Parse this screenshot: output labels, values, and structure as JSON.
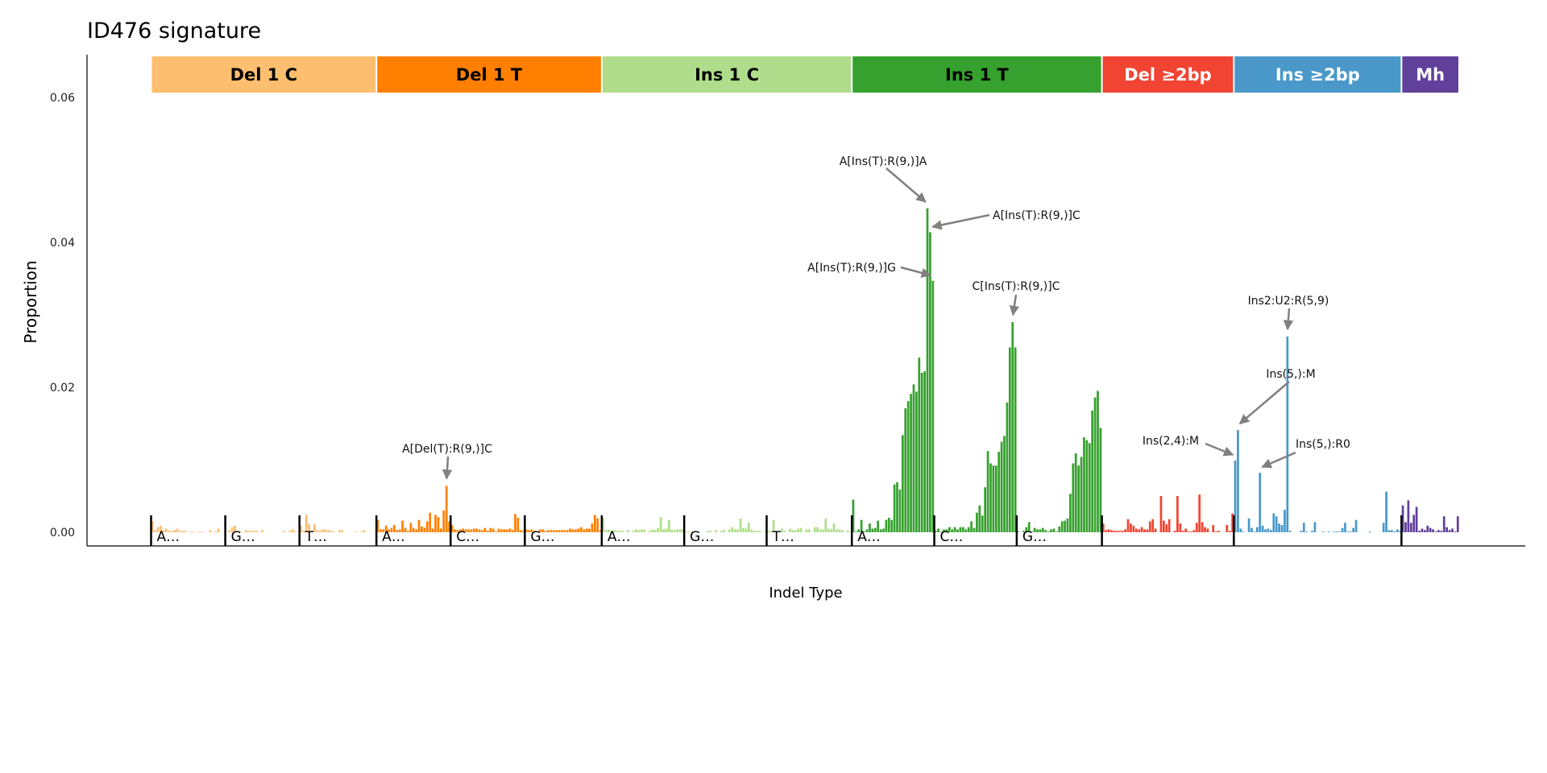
{
  "chart_data": {
    "type": "bar",
    "title": "ID476 signature",
    "xlabel": "Indel Type",
    "ylabel": "Proportion",
    "ylim": [
      0,
      0.066
    ],
    "yticks": [
      0,
      0.02,
      0.04,
      0.06
    ],
    "ytick_labels": [
      "0.00",
      "0.02",
      "0.04",
      "0.06"
    ],
    "grid": false,
    "annotation_color": "#808080",
    "groups": [
      {
        "name": "Del 1 C",
        "color": "#FDBE6F",
        "text_color": "#000000",
        "sections": [
          {
            "label": "A…",
            "values": [
              0.0015,
              0.0003,
              0.0007,
              0.0009,
              0.0003,
              0.0005,
              0.0002,
              0.0002,
              0.0003,
              0.0005,
              0.0002,
              0.0002,
              0.0002,
              0,
              0.0001,
              0.0001,
              0,
              0.0001,
              0.0001,
              0,
              0,
              0.0003,
              0,
              0.0001,
              0.0005,
              0,
              0
            ]
          },
          {
            "label": "G…",
            "values": [
              0,
              0.0003,
              0.0007,
              0.0009,
              0.0002,
              0.0001,
              0,
              0.0003,
              0.0002,
              0.0002,
              0.0002,
              0.0002,
              0,
              0.0003,
              0,
              0,
              0,
              0,
              0,
              0,
              0,
              0.0002,
              0,
              0.0002,
              0.0004,
              0.0001,
              0
            ]
          },
          {
            "label": "T…",
            "values": [
              0.0009,
              0.0002,
              0.0024,
              0.0011,
              0.0002,
              0.0011,
              0.0003,
              0.0002,
              0.0004,
              0.0004,
              0.0003,
              0.0002,
              0.0001,
              0,
              0.0003,
              0.0003,
              0,
              0,
              0,
              0,
              0.0001,
              0,
              0.0001,
              0.0003,
              0,
              0,
              0,
              0
            ]
          }
        ]
      },
      {
        "name": "Del 1 T",
        "color": "#FF8001",
        "text_color": "#000000",
        "sections": [
          {
            "label": "A…",
            "values": [
              0.0017,
              0.0004,
              0.0004,
              0.0009,
              0.0004,
              0.0006,
              0.001,
              0.0003,
              0.0004,
              0.0016,
              0.0006,
              0.0002,
              0.0013,
              0.0006,
              0.0004,
              0.0017,
              0.0008,
              0.0006,
              0.0015,
              0.0027,
              0.0005,
              0.0024,
              0.0021,
              0.0005,
              0.003,
              0.0064,
              0.0015
            ]
          },
          {
            "label": "C…",
            "values": [
              0.001,
              0.0004,
              0.0003,
              0.0004,
              0.0005,
              0.0004,
              0.0004,
              0.0004,
              0.0005,
              0.0005,
              0.0004,
              0.0003,
              0.0006,
              0.0002,
              0.0006,
              0.0005,
              0.0001,
              0.0005,
              0.0004,
              0.0004,
              0.0004,
              0.0005,
              0.0003,
              0.0025,
              0.002,
              0.0003,
              0.0002
            ]
          },
          {
            "label": "G…",
            "values": [
              0.0004,
              0.0003,
              0.0004,
              0.0002,
              0.0001,
              0.0004,
              0.0004,
              0.0002,
              0.0003,
              0.0003,
              0.0003,
              0.0003,
              0.0003,
              0.0003,
              0.0003,
              0.0003,
              0.0005,
              0.0004,
              0.0004,
              0.0005,
              0.0007,
              0.0004,
              0.0005,
              0.0005,
              0.0012,
              0.0024,
              0.0019,
              0.0003
            ]
          }
        ]
      },
      {
        "name": "Ins 1 C",
        "color": "#B0DD8B",
        "text_color": "#000000",
        "sections": [
          {
            "label": "A…",
            "values": [
              0.002,
              0.0003,
              0.0004,
              0.0002,
              0.0003,
              0.0002,
              0.0002,
              0.0002,
              0,
              0.0003,
              0,
              0.0002,
              0.0004,
              0.0003,
              0.0004,
              0.0004,
              0,
              0.0002,
              0.0004,
              0.0003,
              0.0006,
              0.0021,
              0.0004,
              0.0005,
              0.0017,
              0.0004,
              0.0003,
              0.0004,
              0.0004,
              0.0004
            ]
          },
          {
            "label": "G…",
            "values": [
              0.0001,
              0.0001,
              0.0001,
              0,
              0.0001,
              0.0001,
              0,
              0,
              0.0002,
              0.0002,
              0,
              0.0003,
              0,
              0.0002,
              0.0003,
              0,
              0.0004,
              0.0007,
              0.0004,
              0.0004,
              0.0019,
              0.0006,
              0.0005,
              0.0013,
              0.0004,
              0.0002,
              0.0002,
              0.0002,
              0,
              0.0001
            ]
          },
          {
            "label": "T…",
            "values": [
              0.0002,
              0.0002,
              0.0017,
              0.0002,
              0,
              0.0005,
              0.0002,
              0,
              0.0005,
              0.0003,
              0.0003,
              0.0005,
              0.0006,
              0,
              0.0004,
              0.0004,
              0,
              0.0007,
              0.0007,
              0.0004,
              0.0004,
              0.0019,
              0.0005,
              0.0004,
              0.0012,
              0.0004,
              0.0004,
              0.0003,
              0,
              0.0002,
              0.0001
            ]
          }
        ]
      },
      {
        "name": "Ins 1 T",
        "color": "#36A12E",
        "text_color": "#000000",
        "sections": [
          {
            "label": "A…",
            "values": [
              0.0045,
              0.0001,
              0.0004,
              0.0017,
              0.0001,
              0.0004,
              0.0012,
              0.0005,
              0.0006,
              0.0016,
              0.0004,
              0.0005,
              0.0017,
              0.002,
              0.0017,
              0.0066,
              0.0069,
              0.0059,
              0.0134,
              0.0171,
              0.0181,
              0.0191,
              0.0204,
              0.0194,
              0.0241,
              0.022,
              0.0222,
              0.0447,
              0.0414,
              0.0347
            ]
          },
          {
            "label": "C…",
            "values": [
              0.0002,
              0.0005,
              0.0001,
              0.0004,
              0.0004,
              0.0007,
              0.0004,
              0.0007,
              0.0004,
              0.0007,
              0.0007,
              0.0004,
              0.0007,
              0.0015,
              0.0006,
              0.0027,
              0.0037,
              0.0023,
              0.0062,
              0.0112,
              0.0095,
              0.0092,
              0.0092,
              0.0111,
              0.0125,
              0.0133,
              0.0179,
              0.0255,
              0.029,
              0.0255
            ]
          },
          {
            "label": "G…",
            "values": [
              0.0001,
              0,
              0.0002,
              0.0007,
              0.0014,
              0.0001,
              0.0006,
              0.0004,
              0.0004,
              0.0006,
              0.0003,
              0.0001,
              0.0004,
              0.0005,
              0.0001,
              0.0008,
              0.0015,
              0.0016,
              0.0019,
              0.0053,
              0.0095,
              0.0109,
              0.0092,
              0.0104,
              0.0131,
              0.0127,
              0.0123,
              0.0168,
              0.0186,
              0.0195,
              0.0144
            ]
          }
        ]
      },
      {
        "name": "Del ≥2bp",
        "color": "#F14432",
        "text_color": "#FFFFFF",
        "sections": [
          {
            "label": "",
            "values": [
              0.0012,
              0.0003,
              0.0004,
              0.0003,
              0.0002,
              0.0002,
              0.0002,
              0.0002,
              0.0004,
              0.0018,
              0.0012,
              0.0009,
              0.0005,
              0.0004,
              0.0007,
              0.0004,
              0.0004,
              0.0015,
              0.0018,
              0.0005,
              0,
              0.005,
              0.0016,
              0.0011,
              0.0018,
              0,
              0.0002,
              0.005,
              0.0012,
              0.0002,
              0.0005,
              0.0001,
              0.0001,
              0.0003,
              0.0013,
              0.0052,
              0.0014,
              0.0007,
              0.0005,
              0,
              0.001,
              0.0001,
              0.0002,
              0,
              0,
              0.001,
              0.0002,
              0.0026
            ]
          }
        ]
      },
      {
        "name": "Ins ≥2bp",
        "color": "#4A98C9",
        "text_color": "#FFFFFF",
        "sections": [
          {
            "label": "",
            "values": [
              0.0099,
              0.0141,
              0.0005,
              0.0001,
              0,
              0.0019,
              0.0006,
              0.0001,
              0.0007,
              0.0082,
              0.0009,
              0.0004,
              0.0005,
              0.0003,
              0.0026,
              0.0022,
              0.0012,
              0.001,
              0.0031,
              0.027,
              0.0002,
              0,
              0,
              0,
              0.0002,
              0.0013,
              0.0001,
              0,
              0.0002,
              0.0014,
              0,
              0,
              0.0001,
              0,
              0.0001,
              0,
              0.0001,
              0.0001,
              0.0001,
              0.0006,
              0.0013,
              0.0001,
              0.0001,
              0.0006,
              0.0017,
              0,
              0,
              0,
              0,
              0.0001,
              0,
              0,
              0,
              0,
              0.0013,
              0.0056,
              0.0003,
              0.0003,
              0.0001,
              0.0004,
              0.0002
            ]
          }
        ]
      },
      {
        "name": "Mh",
        "color": "#61409B",
        "text_color": "#FFFFFF",
        "sections": [
          {
            "label": "",
            "values": [
              0.0037,
              0.0014,
              0.0044,
              0.0013,
              0.0024,
              0.0035,
              0.0002,
              0.0005,
              0.0003,
              0.0009,
              0.0006,
              0.0004,
              0.0001,
              0.0003,
              0.0002,
              0.0022,
              0.0007,
              0.0003,
              0.0005,
              0.0001,
              0.0022
            ]
          }
        ]
      }
    ],
    "annotations": [
      {
        "label": "A[Del(T):R(9,)]C",
        "group": 1,
        "section": 0,
        "index": 25
      },
      {
        "label": "A[Ins(T):R(9,)]A",
        "group": 3,
        "section": 0,
        "index": 27
      },
      {
        "label": "A[Ins(T):R(9,)]C",
        "group": 3,
        "section": 0,
        "index": 28
      },
      {
        "label": "A[Ins(T):R(9,)]G",
        "group": 3,
        "section": 0,
        "index": 29
      },
      {
        "label": "C[Ins(T):R(9,)]C",
        "group": 3,
        "section": 1,
        "index": 28
      },
      {
        "label": "Ins2:U2:R(5,9)",
        "group": 5,
        "section": 0,
        "index": 19
      },
      {
        "label": "Ins(5,):M",
        "group": 5,
        "section": 0,
        "index": 1
      },
      {
        "label": "Ins(2,4):M",
        "group": 5,
        "section": 0,
        "index": 0
      },
      {
        "label": "Ins(5,):R0",
        "group": 5,
        "section": 0,
        "index": 9
      }
    ]
  }
}
